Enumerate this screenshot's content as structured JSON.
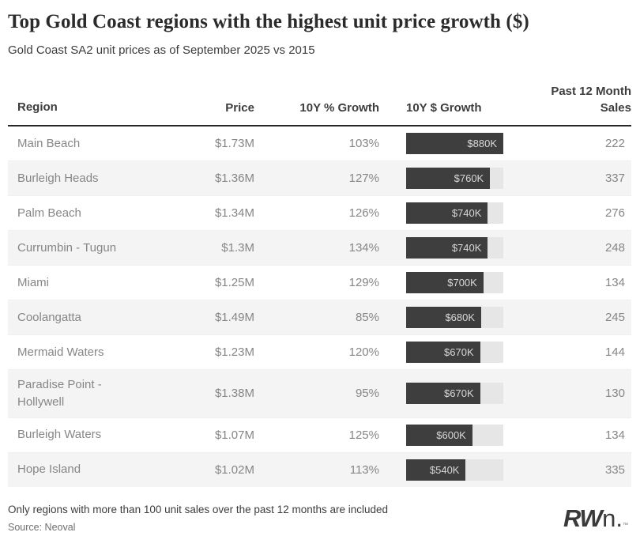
{
  "header": {
    "title": "Top Gold Coast regions with the highest unit price growth ($)",
    "subtitle": "Gold Coast SA2 unit prices as of September 2025 vs 2015"
  },
  "table": {
    "columns": [
      "Region",
      "Price",
      "10Y % Growth",
      "10Y $ Growth",
      "Past 12 Month Sales"
    ],
    "bar_max_k": 880,
    "rows": [
      {
        "region": "Main Beach",
        "price": "$1.73M",
        "pct_growth": "103%",
        "dollar_growth_label": "$880K",
        "dollar_growth_k": 880,
        "sales": "222"
      },
      {
        "region": "Burleigh Heads",
        "price": "$1.36M",
        "pct_growth": "127%",
        "dollar_growth_label": "$760K",
        "dollar_growth_k": 760,
        "sales": "337"
      },
      {
        "region": "Palm Beach",
        "price": "$1.34M",
        "pct_growth": "126%",
        "dollar_growth_label": "$740K",
        "dollar_growth_k": 740,
        "sales": "276"
      },
      {
        "region": "Currumbin - Tugun",
        "price": "$1.3M",
        "pct_growth": "134%",
        "dollar_growth_label": "$740K",
        "dollar_growth_k": 740,
        "sales": "248"
      },
      {
        "region": "Miami",
        "price": "$1.25M",
        "pct_growth": "129%",
        "dollar_growth_label": "$700K",
        "dollar_growth_k": 700,
        "sales": "134"
      },
      {
        "region": "Coolangatta",
        "price": "$1.49M",
        "pct_growth": "85%",
        "dollar_growth_label": "$680K",
        "dollar_growth_k": 680,
        "sales": "245"
      },
      {
        "region": "Mermaid Waters",
        "price": "$1.23M",
        "pct_growth": "120%",
        "dollar_growth_label": "$670K",
        "dollar_growth_k": 670,
        "sales": "144"
      },
      {
        "region": "Paradise Point - Hollywell",
        "price": "$1.38M",
        "pct_growth": "95%",
        "dollar_growth_label": "$670K",
        "dollar_growth_k": 670,
        "sales": "130"
      },
      {
        "region": "Burleigh Waters",
        "price": "$1.07M",
        "pct_growth": "125%",
        "dollar_growth_label": "$600K",
        "dollar_growth_k": 600,
        "sales": "134"
      },
      {
        "region": "Hope Island",
        "price": "$1.02M",
        "pct_growth": "113%",
        "dollar_growth_label": "$540K",
        "dollar_growth_k": 540,
        "sales": "335"
      }
    ]
  },
  "chart_data": {
    "type": "table",
    "title": "Top Gold Coast regions with the highest unit price growth ($)",
    "subtitle": "Gold Coast SA2 unit prices as of September 2025 vs 2015",
    "columns": [
      "Region",
      "Price",
      "10Y % Growth",
      "10Y $ Growth",
      "Past 12 Month Sales"
    ],
    "rows": [
      [
        "Main Beach",
        "$1.73M",
        "103%",
        "$880K",
        222
      ],
      [
        "Burleigh Heads",
        "$1.36M",
        "127%",
        "$760K",
        337
      ],
      [
        "Palm Beach",
        "$1.34M",
        "126%",
        "$740K",
        276
      ],
      [
        "Currumbin - Tugun",
        "$1.3M",
        "134%",
        "$740K",
        248
      ],
      [
        "Miami",
        "$1.25M",
        "129%",
        "$700K",
        134
      ],
      [
        "Coolangatta",
        "$1.49M",
        "85%",
        "$680K",
        245
      ],
      [
        "Mermaid Waters",
        "$1.23M",
        "120%",
        "$670K",
        144
      ],
      [
        "Paradise Point - Hollywell",
        "$1.38M",
        "95%",
        "$670K",
        130
      ],
      [
        "Burleigh Waters",
        "$1.07M",
        "125%",
        "$600K",
        134
      ],
      [
        "Hope Island",
        "$1.02M",
        "113%",
        "$540K",
        335
      ]
    ],
    "embedded_bar": {
      "type": "bar",
      "column": "10Y $ Growth",
      "categories": [
        "Main Beach",
        "Burleigh Heads",
        "Palm Beach",
        "Currumbin - Tugun",
        "Miami",
        "Coolangatta",
        "Mermaid Waters",
        "Paradise Point - Hollywell",
        "Burleigh Waters",
        "Hope Island"
      ],
      "values_thousands": [
        880,
        760,
        740,
        740,
        700,
        680,
        670,
        670,
        600,
        540
      ],
      "xlim": [
        0,
        880
      ],
      "bar_color": "#3e3e3e",
      "track_color": "#e6e6e6"
    }
  },
  "footer": {
    "note": "Only regions with more than 100 unit sales over the past 12 months are included",
    "source": "Source: Neoval",
    "logo_bold": "RW",
    "logo_light": "n.",
    "logo_tm": "™"
  },
  "colors": {
    "bar_fill": "#3e3e3e",
    "bar_track": "#e6e6e6",
    "stripe": "#f4f4f4",
    "header_rule": "#262626",
    "body_text": "#868686",
    "heading_text": "#2b2b2b"
  }
}
